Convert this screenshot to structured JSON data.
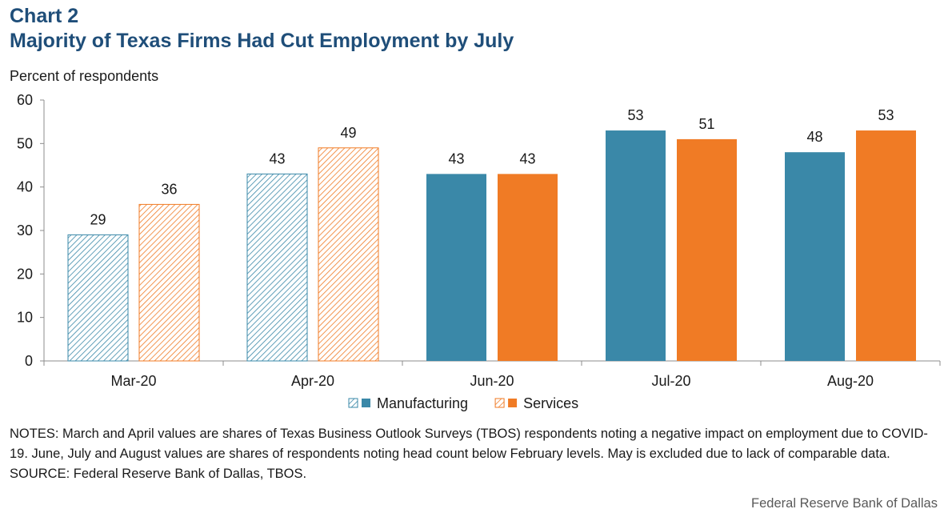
{
  "header": {
    "chart_number": "Chart 2",
    "title": "Majority of Texas Firms Had Cut Employment by July"
  },
  "notes": {
    "notes_text": "NOTES: March and April values are shares of Texas Business Outlook Surveys (TBOS) respondents noting a negative impact on employment due to COVID-19.  June, July and August values are shares of respondents noting head count below February levels. May is excluded due to lack of comparable data.",
    "source_text": "SOURCE: Federal Reserve Bank of Dallas, TBOS."
  },
  "footer": {
    "credit": "Federal Reserve Bank of Dallas"
  },
  "colors": {
    "manufacturing": "#3a88a8",
    "services": "#f07b25",
    "title": "#1f4e79"
  },
  "chart_data": {
    "type": "bar",
    "title": "Majority of Texas Firms Had Cut Employment by July",
    "ylabel": "Percent of respondents",
    "xlabel": "",
    "ylim": [
      0,
      60
    ],
    "yticks": [
      0,
      10,
      20,
      30,
      40,
      50,
      60
    ],
    "categories": [
      "Mar-20",
      "Apr-20",
      "Jun-20",
      "Jul-20",
      "Aug-20"
    ],
    "hatched_categories": [
      "Mar-20",
      "Apr-20"
    ],
    "series": [
      {
        "name": "Manufacturing",
        "values": [
          29,
          43,
          43,
          53,
          48
        ],
        "color": "#3a88a8"
      },
      {
        "name": "Services",
        "values": [
          36,
          49,
          43,
          51,
          53
        ],
        "color": "#f07b25"
      }
    ],
    "legend_position": "bottom-center",
    "grid": false
  }
}
